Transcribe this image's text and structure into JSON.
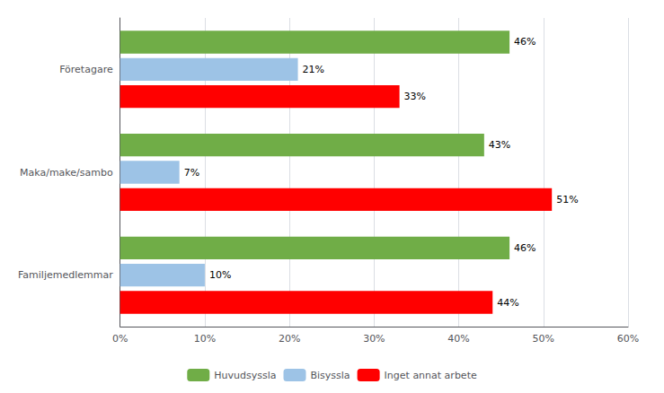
{
  "chart_data": {
    "type": "bar",
    "orientation": "horizontal",
    "categories": [
      "Familjemedlemmar",
      "Maka/make/sambo",
      "Företagare"
    ],
    "series": [
      {
        "name": "Huvudsyssla",
        "color": "#70AD47",
        "values": [
          46,
          43,
          46
        ],
        "value_labels": [
          "46%",
          "43%",
          "46%"
        ]
      },
      {
        "name": "Bisyssla",
        "color": "#9DC3E6",
        "values": [
          10,
          7,
          21
        ],
        "value_labels": [
          "10%",
          "7%",
          "21%"
        ]
      },
      {
        "name": "Inget annat arbete",
        "color": "#FF0000",
        "values": [
          44,
          51,
          33
        ],
        "value_labels": [
          "44%",
          "51%",
          "33%"
        ]
      }
    ],
    "xlim": [
      0,
      60
    ],
    "xticks": [
      {
        "value": 0,
        "label": "0%"
      },
      {
        "value": 10,
        "label": "10%"
      },
      {
        "value": 20,
        "label": "20%"
      },
      {
        "value": 30,
        "label": "30%"
      },
      {
        "value": 40,
        "label": "40%"
      },
      {
        "value": 50,
        "label": "50%"
      },
      {
        "value": 60,
        "label": "60%"
      }
    ],
    "grid": true,
    "legend": "bottom",
    "data_labels": true
  }
}
